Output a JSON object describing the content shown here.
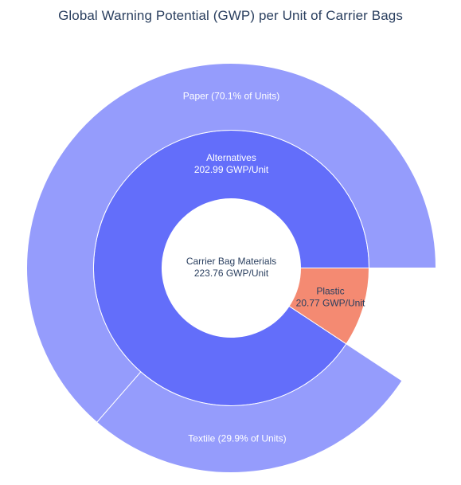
{
  "title": "Global Warning Potential (GWP) per Unit of Carrier Bags",
  "chart_data": {
    "type": "sunburst",
    "title": "Global Warning Potential (GWP) per Unit of Carrier Bags",
    "root": {
      "label": "Carrier Bag Materials",
      "value_text": "223.76 GWP/Unit",
      "value": 223.76
    },
    "level1": [
      {
        "label": "Alternatives",
        "value_text": "202.99 GWP/Unit",
        "value": 202.99,
        "color": "#636efa"
      },
      {
        "label": "Plastic",
        "value_text": "20.77 GWP/Unit",
        "value": 20.77,
        "color": "#f48a72"
      }
    ],
    "level2": [
      {
        "parent": "Alternatives",
        "label": "Paper (70.1% of Units)",
        "share": 0.701,
        "color": "#959cfc"
      },
      {
        "parent": "Alternatives",
        "label": "Textile (29.9% of Units)",
        "share": 0.299,
        "color": "#959cfc"
      }
    ]
  }
}
